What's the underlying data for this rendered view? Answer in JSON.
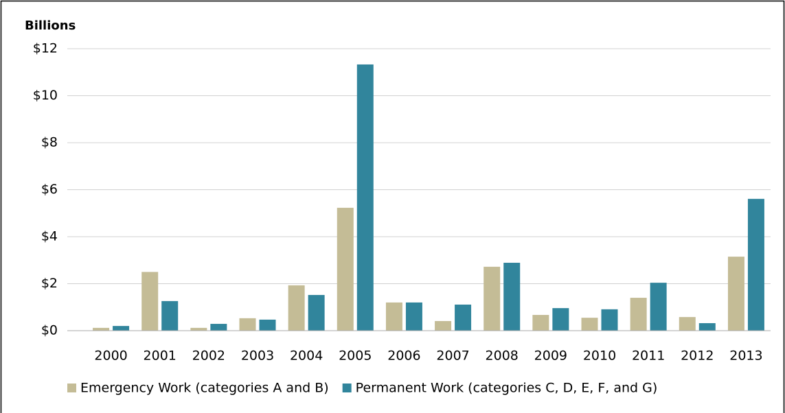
{
  "chart_data": {
    "type": "bar",
    "y_label": "Billions",
    "categories": [
      "2000",
      "2001",
      "2002",
      "2003",
      "2004",
      "2005",
      "2006",
      "2007",
      "2008",
      "2009",
      "2010",
      "2011",
      "2012",
      "2013"
    ],
    "series": [
      {
        "name": "Emergency Work (categories A and B)",
        "color": "#c4bc96",
        "values": [
          0.12,
          2.5,
          0.12,
          0.53,
          1.93,
          5.23,
          1.2,
          0.41,
          2.72,
          0.67,
          0.55,
          1.4,
          0.58,
          3.15
        ]
      },
      {
        "name": "Permanent Work (categories C, D, E, F, and G)",
        "color": "#31859c",
        "values": [
          0.2,
          1.26,
          0.29,
          0.47,
          1.52,
          11.33,
          1.2,
          1.11,
          2.89,
          0.96,
          0.91,
          2.04,
          0.32,
          5.61
        ]
      }
    ],
    "ylim": [
      0,
      12
    ],
    "yticks": [
      {
        "value": 0,
        "label": "$0"
      },
      {
        "value": 2,
        "label": "$2"
      },
      {
        "value": 4,
        "label": "$4"
      },
      {
        "value": 6,
        "label": "$6"
      },
      {
        "value": 8,
        "label": "$8"
      },
      {
        "value": 10,
        "label": "$10"
      },
      {
        "value": 12,
        "label": "$12"
      }
    ],
    "grid": true,
    "legend": "bottom"
  }
}
